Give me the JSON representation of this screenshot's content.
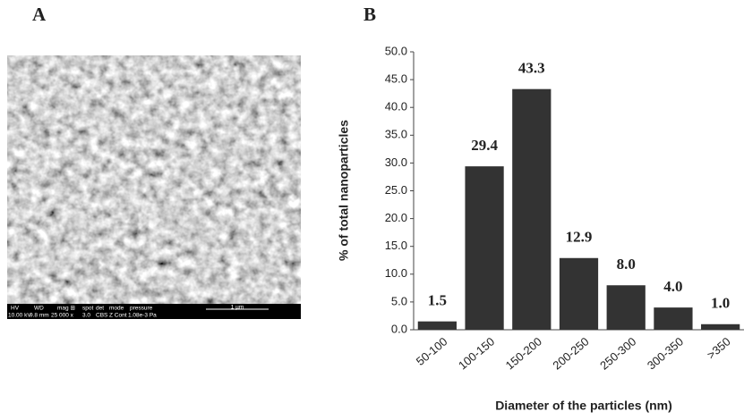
{
  "panel_labels": [
    "A",
    "B"
  ],
  "image_info": {
    "headers": [
      "HV",
      "WD",
      "mag ⊞",
      "spot",
      "det",
      "mode",
      "pressure"
    ],
    "values": [
      "10.00 kV",
      "9.8 mm",
      "25 000 x",
      "3.0",
      "CBS",
      "Z Cont",
      "1.08e-3 Pa"
    ],
    "scale": "1 µm"
  },
  "chart_data": {
    "type": "bar",
    "x_label": "Diameter of the particles (nm)",
    "y_label": "% of total nanoparticles",
    "categories": [
      "50-100",
      "100-150",
      "150-200",
      "200-250",
      "250-300",
      "300-350",
      ">350"
    ],
    "values": [
      1.5,
      29.4,
      43.3,
      12.9,
      8.0,
      4.0,
      1.0
    ],
    "value_labels": [
      "1.5",
      "29.4",
      "43.3",
      "12.9",
      "8.0",
      "4.0",
      "1.0"
    ],
    "color": "#333333",
    "ylim": [
      0,
      50
    ],
    "yticks": [
      {
        "value": 0,
        "label": "0.0"
      },
      {
        "value": 5,
        "label": "5.0"
      },
      {
        "value": 10,
        "label": "10.0"
      },
      {
        "value": 15,
        "label": "15.0"
      },
      {
        "value": 20,
        "label": "20.0"
      },
      {
        "value": 25,
        "label": "25.0"
      },
      {
        "value": 30,
        "label": "30.0"
      },
      {
        "value": 35,
        "label": "35.0"
      },
      {
        "value": 40,
        "label": "40.0"
      },
      {
        "value": 45,
        "label": "45.0"
      },
      {
        "value": 50,
        "label": "50.0"
      }
    ]
  }
}
